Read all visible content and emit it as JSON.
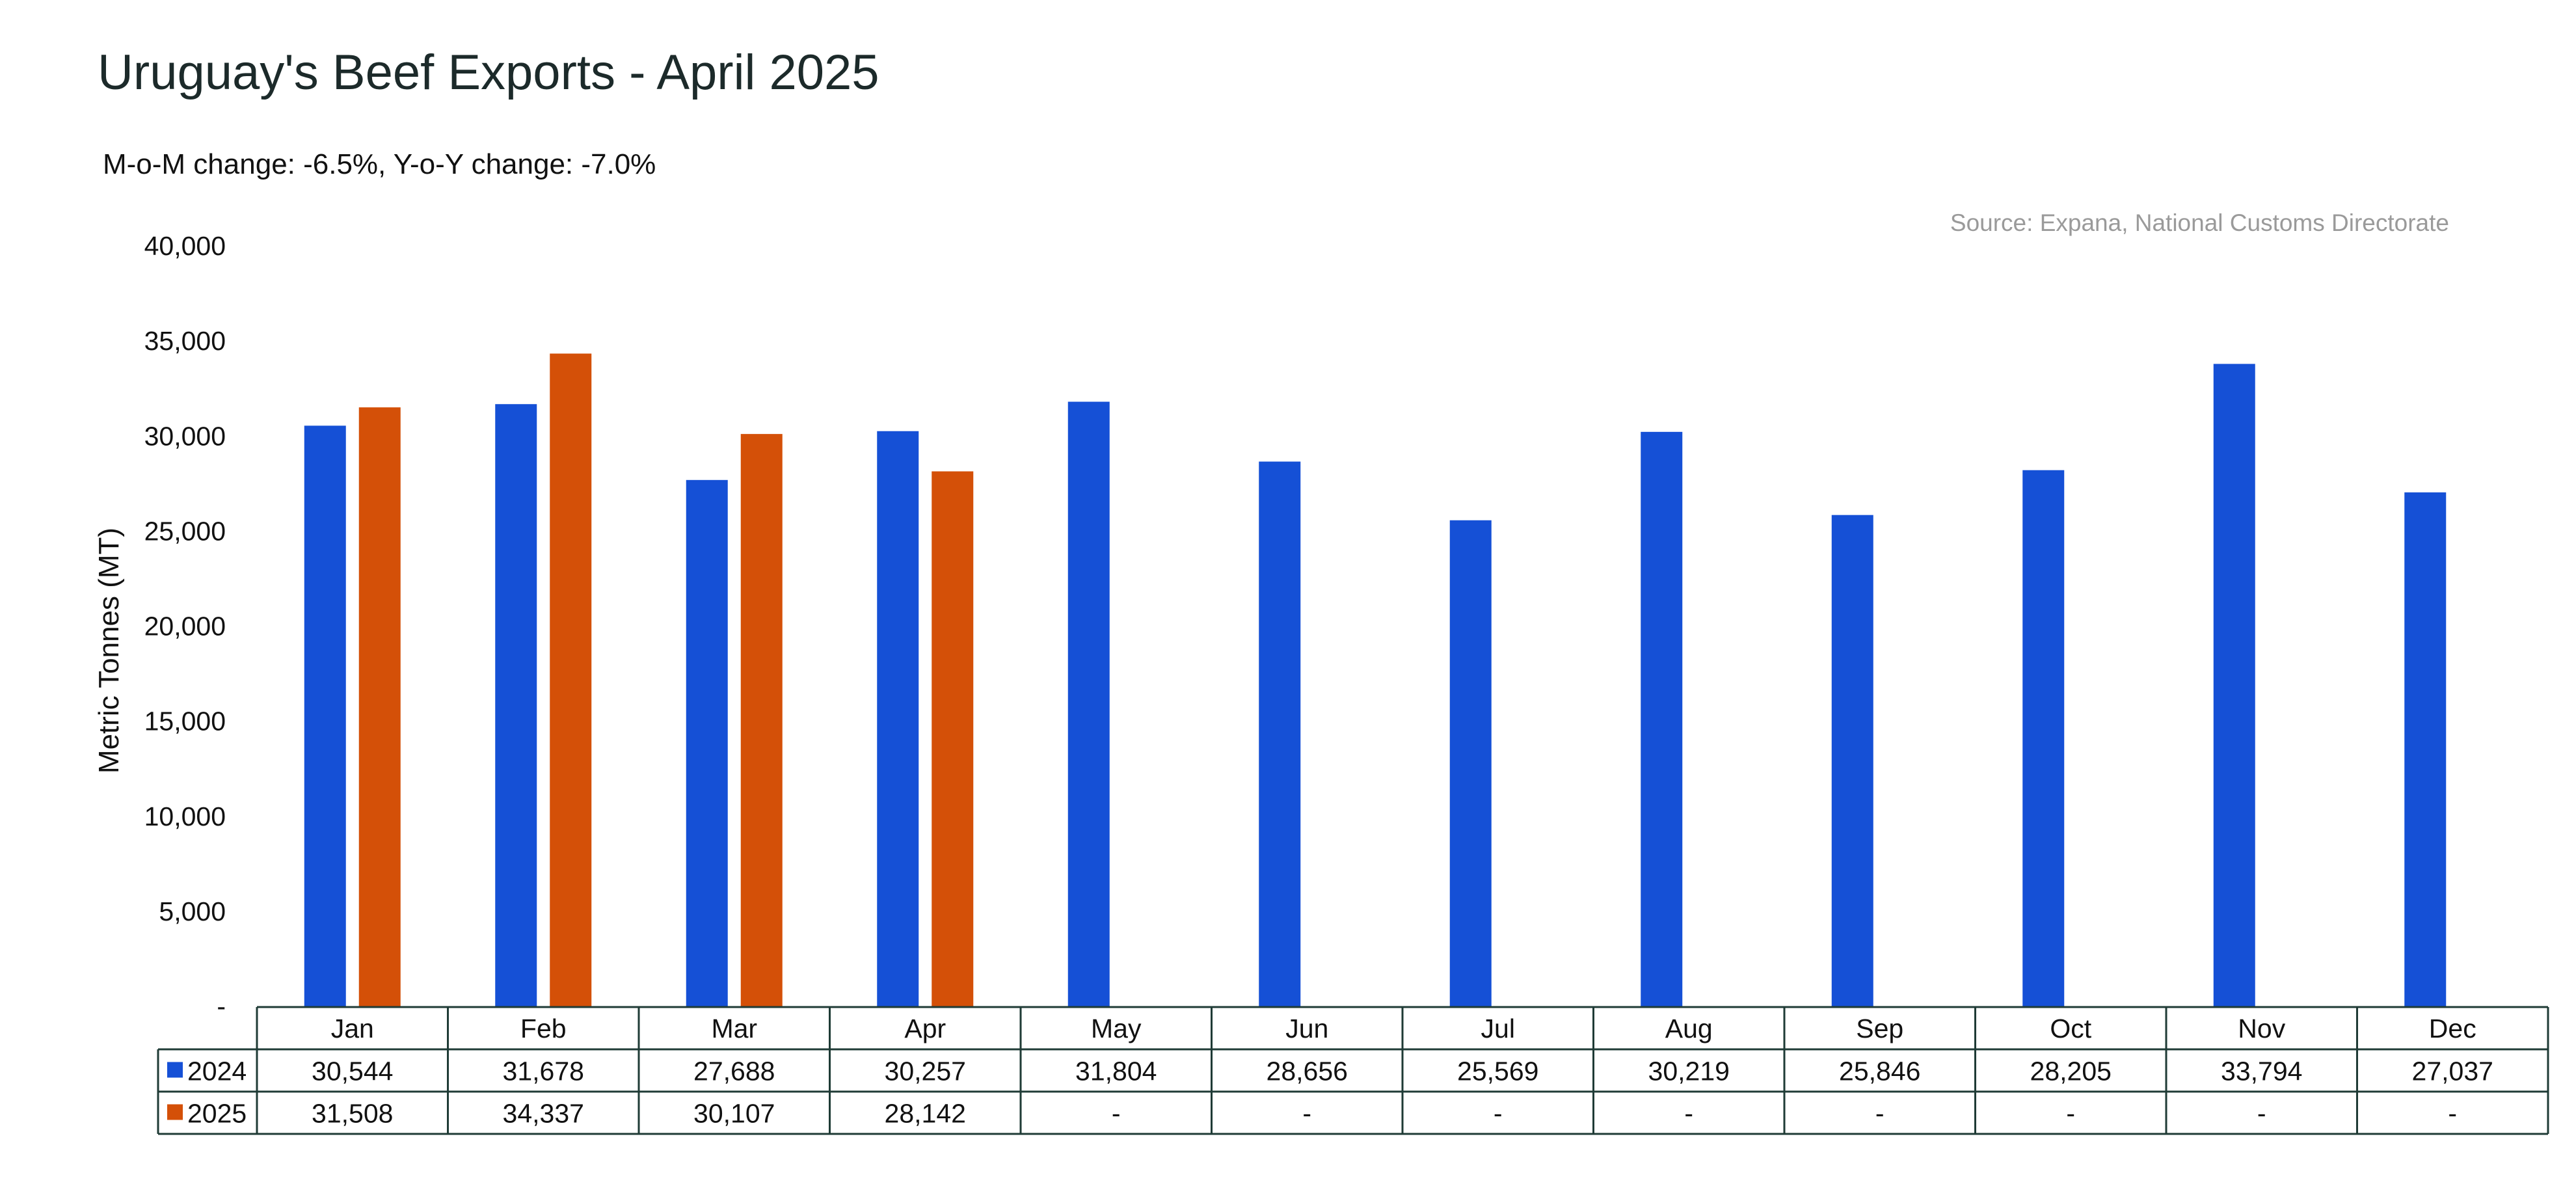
{
  "title": "Uruguay's Beef Exports -  April 2025",
  "subtitle": "M-o-M change: -6.5%, Y-o-Y change: -7.0%",
  "source": "Source: Expana, National Customs Directorate",
  "chart_data": {
    "type": "bar",
    "ylabel": "Metric Tonnes (MT)",
    "ylim": [
      0,
      40000
    ],
    "yticks": [
      "-",
      "5,000",
      "10,000",
      "15,000",
      "20,000",
      "25,000",
      "30,000",
      "35,000",
      "40,000"
    ],
    "categories": [
      "Jan",
      "Feb",
      "Mar",
      "Apr",
      "May",
      "Jun",
      "Jul",
      "Aug",
      "Sep",
      "Oct",
      "Nov",
      "Dec"
    ],
    "series": [
      {
        "name": "2024",
        "color": "#1550d6",
        "values": [
          30544,
          31678,
          27688,
          30257,
          31804,
          28656,
          25569,
          30219,
          25846,
          28205,
          33794,
          27037
        ],
        "labels": [
          "30,544",
          "31,678",
          "27,688",
          "30,257",
          "31,804",
          "28,656",
          "25,569",
          "30,219",
          "25,846",
          "28,205",
          "33,794",
          "27,037"
        ]
      },
      {
        "name": "2025",
        "color": "#d45008",
        "values": [
          31508,
          34337,
          30107,
          28142,
          null,
          null,
          null,
          null,
          null,
          null,
          null,
          null
        ],
        "labels": [
          "31,508",
          "34,337",
          "30,107",
          "28,142",
          "-",
          "-",
          "-",
          "-",
          "-",
          "-",
          "-",
          "-"
        ]
      }
    ],
    "grid": false,
    "legend": "data-table"
  }
}
